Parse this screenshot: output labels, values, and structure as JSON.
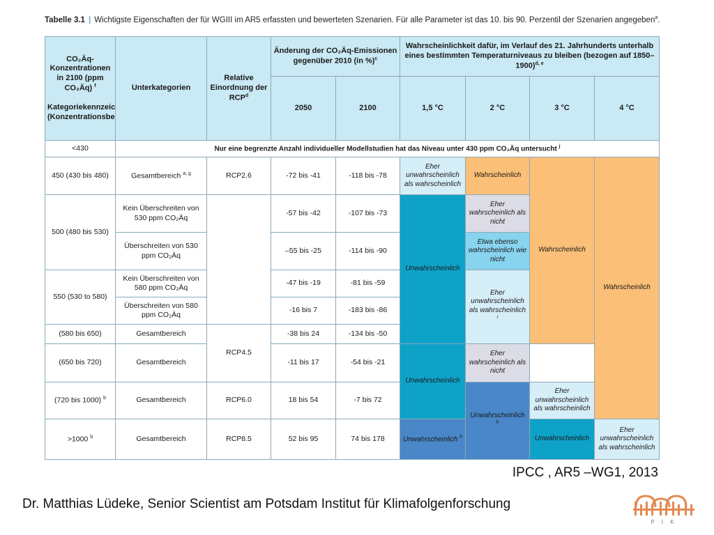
{
  "caption": {
    "label": "Tabelle 3.1",
    "separator": "|",
    "text": "Wichtigste Eigenschaften der für WGIII im AR5 erfassten und bewerteten Szenarien. Für alle Parameter ist das 10. bis 90. Perzentil der Szenarien angegeben",
    "sup": "a",
    "end": "."
  },
  "header": {
    "conc": "CO₂Äq-Konzentrationen in 2100 (ppm CO₂Äq)",
    "conc_sup": "f",
    "conc2": "Kategoriekennzeichnung (Konzentrationsbereich)",
    "subcat": "Unterkategorien",
    "rcp": "Relative Einordnung der RCP",
    "rcp_sup": "d",
    "emis": "Änderung der CO₂Äq-Emissionen gegenüber 2010 (in %)",
    "emis_sup": "c",
    "likely": "Wahrscheinlichkeit dafür, im Verlauf des 21. Jahrhunderts unterhalb eines bestimmten Temperaturniveaus zu bleiben (bezogen auf 1850–1900)",
    "likely_sup": "d, e",
    "y2050": "2050",
    "y2100": "2100",
    "t15": "1,5 °C",
    "t2": "2 °C",
    "t3": "3 °C",
    "t4": "4 °C"
  },
  "rows": {
    "r430_conc": "<430",
    "r430_note": "Nur eine begrenzte Anzahl individueller Modellstudien hat das Niveau unter 430 ppm CO₂Äq untersucht",
    "r430_sup": "j",
    "r450_conc": "450 (430 bis 480)",
    "r450_sub": "Gesamtbereich",
    "r450_sub_sup": "a, g",
    "r450_rcp": "RCP2.6",
    "r450_2050": "-72 bis -41",
    "r450_2100": "-118 bis -78",
    "r500_conc": "500 (480 bis 530)",
    "r500a_sub": "Kein Überschreiten von 530 ppm CO₂Äq",
    "r500a_2050": "-57 bis -42",
    "r500a_2100": "-107 bis -73",
    "r500b_sub": "Überschreiten von 530 ppm CO₂Äq",
    "r500b_2050": "–55 bis -25",
    "r500b_2100": "-114 bis -90",
    "r550_conc": "550 (530 to 580)",
    "r550a_sub": "Kein Überschreiten von 580 ppm CO₂Äq",
    "r550a_2050": "-47 bis -19",
    "r550a_2100": "-81 bis -59",
    "r550b_sub": "Überschreiten von 580 ppm CO₂Äq",
    "r550b_2050": "-16 bis 7",
    "r550b_2100": "-183 bis -86",
    "r580_conc": "(580 bis 650)",
    "r580_sub": "Gesamtbereich",
    "r580_2050": "-38 bis 24",
    "r580_2100": "-134 bis -50",
    "rcp45": "RCP4.5",
    "r650_conc": "(650 bis 720)",
    "r650_sub": "Gesamtbereich",
    "r650_2050": "-11 bis 17",
    "r650_2100": "-54 bis -21",
    "r720_conc": "(720 bis 1000)",
    "r720_sup": "b",
    "r720_sub": "Gesamtbereich",
    "r720_rcp": "RCP6.0",
    "r720_2050": "18 bis 54",
    "r720_2100": "-7 bis 72",
    "r1000_conc": ">1000",
    "r1000_sup": "b",
    "r1000_sub": "Gesamtbereich",
    "r1000_rcp": "RCP8.5",
    "r1000_2050": "52 bis 95",
    "r1000_2100": "74 bis 178"
  },
  "cells": {
    "p15_a": "Eher unwahrscheinlich als wahrscheinlich",
    "p15_b": "Unwahrscheinlich",
    "p15_c": "Unwahrscheinlich",
    "p15_c_sup": "h",
    "p2_a": "Wahrscheinlich",
    "p2_b": "Eher wahrscheinlich als nicht",
    "p2_c": "Etwa ebenso wahrscheinlich wie nicht",
    "p2_d": "Eher unwahrscheinlich als wahrscheinlich",
    "p2_d_sup": "i",
    "p2_e": "Unwahrscheinlich",
    "p2_f": "Unwahrscheinlich",
    "p2_f_sup": "h",
    "p3_a": "Wahrscheinlich",
    "p3_b": "Eher wahrscheinlich als nicht",
    "p3_c": "Eher unwahrscheinlich als wahrscheinlich",
    "p3_d": "Unwahrscheinlich",
    "p4_a": "Wahrscheinlich",
    "p4_b": "Eher unwahrscheinlich als wahrscheinlich"
  },
  "colors": {
    "header": "#c9e9f4",
    "wahrscheinlich": "#fbbf78",
    "unwahrscheinlich": "#0ea2c8",
    "unwahrscheinlich_h": "#4a87c8",
    "eher_wahrscheinlich": "#dcdce6",
    "etwa_ebenso": "#88d3ee",
    "eher_unwahrscheinlich": "#d6eef7"
  },
  "footer": {
    "source": "IPCC , AR5 –WG1, 2013",
    "author": "Dr. Matthias Lüdeke, Senior Scientist am Potsdam Institut für Klimafolgenforschung",
    "logo_text": "P I K"
  }
}
